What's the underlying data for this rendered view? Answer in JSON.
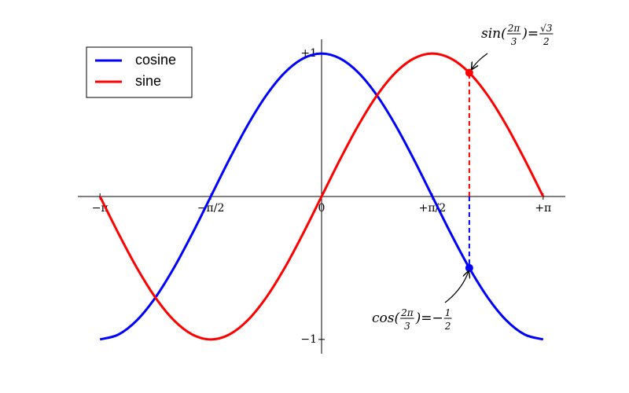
{
  "chart_data": {
    "type": "line",
    "x": [
      -3.1416,
      -2.8798,
      -2.618,
      -2.3562,
      -2.0944,
      -1.8326,
      -1.5708,
      -1.309,
      -1.0472,
      -0.7854,
      -0.5236,
      -0.2618,
      0,
      0.2618,
      0.5236,
      0.7854,
      1.0472,
      1.309,
      1.5708,
      1.8326,
      2.0944,
      2.3562,
      2.618,
      2.8798,
      3.1416
    ],
    "series": [
      {
        "name": "cosine",
        "color": "#0000ff",
        "values": [
          -1,
          -0.9659,
          -0.866,
          -0.7071,
          -0.5,
          -0.2588,
          0,
          0.2588,
          0.5,
          0.7071,
          0.866,
          0.9659,
          1,
          0.9659,
          0.866,
          0.7071,
          0.5,
          0.2588,
          0,
          -0.2588,
          -0.5,
          -0.7071,
          -0.866,
          -0.9659,
          -1
        ]
      },
      {
        "name": "sine",
        "color": "#ff0000",
        "values": [
          0,
          -0.2588,
          -0.5,
          -0.7071,
          -0.866,
          -0.9659,
          -1,
          -0.9659,
          -0.866,
          -0.7071,
          -0.5,
          -0.2588,
          0,
          0.2588,
          0.5,
          0.7071,
          0.866,
          0.9659,
          1,
          0.9659,
          0.866,
          0.7071,
          0.5,
          0.2588,
          0
        ]
      }
    ],
    "xlim": [
      -3.456,
      3.456
    ],
    "ylim": [
      -1.1,
      1.1
    ],
    "xticks": [
      {
        "value": -3.1416,
        "label": "−π"
      },
      {
        "value": -1.5708,
        "label": "−π/2"
      },
      0,
      {
        "value": 1.5708,
        "label": "+π/2"
      },
      {
        "value": 3.1416,
        "label": "+π"
      }
    ],
    "yticks": [
      {
        "value": -1,
        "label": "−1"
      },
      {
        "value": 1,
        "label": "+1"
      }
    ],
    "legend": "upper left",
    "annotations": [
      {
        "x": 2.0944,
        "y": 0.866,
        "color": "#ff0000",
        "label": [
          "sin(",
          {
            "num": "2π",
            "den": "3"
          },
          ")=",
          {
            "num": "√3",
            "den": "2"
          }
        ]
      },
      {
        "x": 2.0944,
        "y": -0.5,
        "color": "#0000ff",
        "label": [
          "cos(",
          {
            "num": "2π",
            "den": "3"
          },
          ")=−",
          {
            "num": "1",
            "den": "2"
          }
        ]
      }
    ]
  }
}
